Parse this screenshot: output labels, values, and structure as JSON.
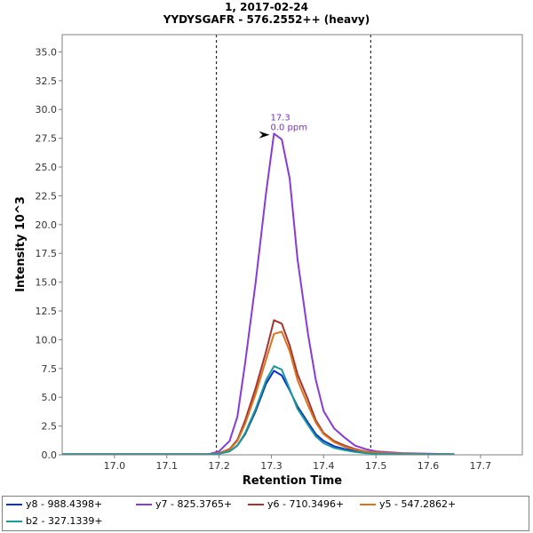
{
  "chart_data": {
    "type": "line",
    "title": "1, 2017-02-24",
    "subtitle": "YYDYSGAFR - 576.2552++ (heavy)",
    "xlabel": "Retention Time",
    "ylabel": "Intensity  10^3",
    "xlim": [
      16.9,
      17.78
    ],
    "ylim": [
      0,
      36.5
    ],
    "xticks": [
      "17.0",
      "17.1",
      "17.2",
      "17.3",
      "17.4",
      "17.5",
      "17.6",
      "17.7"
    ],
    "yticks": [
      "0.0",
      "2.5",
      "5.0",
      "7.5",
      "10.0",
      "12.5",
      "15.0",
      "17.5",
      "20.0",
      "22.5",
      "25.0",
      "27.5",
      "30.0",
      "32.5",
      "35.0"
    ],
    "grid": false,
    "legend_position": "bottom",
    "boundaries": [
      17.195,
      17.49
    ],
    "annotation": {
      "x": 17.3,
      "y": 27.8,
      "line1": "17.3",
      "line2": "0.0 ppm",
      "color": "#7f2fc7"
    },
    "x": [
      16.9,
      17.0,
      17.1,
      17.18,
      17.2,
      17.22,
      17.235,
      17.25,
      17.27,
      17.29,
      17.305,
      17.32,
      17.335,
      17.35,
      17.37,
      17.385,
      17.4,
      17.42,
      17.44,
      17.46,
      17.48,
      17.5,
      17.55,
      17.6,
      17.65
    ],
    "series": [
      {
        "name": "y8 - 988.4398+",
        "color": "#0a2fd2",
        "values": [
          0.05,
          0.05,
          0.05,
          0.05,
          0.1,
          0.3,
          0.8,
          1.8,
          3.8,
          6.2,
          7.3,
          6.9,
          5.6,
          4.2,
          2.8,
          1.8,
          1.2,
          0.75,
          0.5,
          0.35,
          0.25,
          0.15,
          0.08,
          0.05,
          0.05
        ]
      },
      {
        "name": "y7 - 825.3765+",
        "color": "#8a3ad8",
        "values": [
          0.05,
          0.05,
          0.05,
          0.05,
          0.3,
          1.2,
          3.3,
          8.0,
          15.0,
          22.8,
          27.9,
          27.4,
          24.0,
          17.0,
          10.5,
          6.5,
          3.8,
          2.3,
          1.5,
          0.8,
          0.5,
          0.3,
          0.15,
          0.1,
          0.05
        ]
      },
      {
        "name": "y6 - 710.3496+",
        "color": "#a8322e",
        "values": [
          0.05,
          0.05,
          0.05,
          0.05,
          0.15,
          0.5,
          1.3,
          3.0,
          5.8,
          9.0,
          11.7,
          11.4,
          9.5,
          7.0,
          4.8,
          3.0,
          1.9,
          1.2,
          0.8,
          0.5,
          0.3,
          0.2,
          0.1,
          0.05,
          0.05
        ]
      },
      {
        "name": "y5 - 547.2862+",
        "color": "#d8741e",
        "values": [
          0.05,
          0.05,
          0.05,
          0.05,
          0.15,
          0.45,
          1.2,
          2.7,
          5.3,
          8.3,
          10.5,
          10.7,
          9.0,
          6.5,
          4.3,
          2.8,
          1.8,
          1.1,
          0.7,
          0.45,
          0.3,
          0.2,
          0.1,
          0.05,
          0.05
        ]
      },
      {
        "name": "b2 - 327.1339+",
        "color": "#1a9a9a",
        "values": [
          0.05,
          0.05,
          0.05,
          0.05,
          0.1,
          0.3,
          0.8,
          1.9,
          4.0,
          6.5,
          7.7,
          7.4,
          5.7,
          4.0,
          2.6,
          1.6,
          1.0,
          0.6,
          0.4,
          0.25,
          0.15,
          0.1,
          0.05,
          0.05,
          0.05
        ]
      }
    ]
  }
}
